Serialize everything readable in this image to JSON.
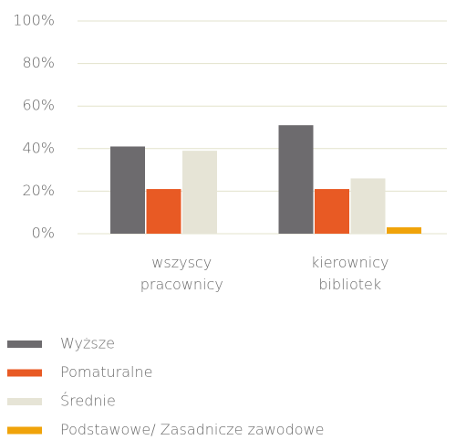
{
  "chart_data": {
    "type": "bar",
    "categories": [
      "wszyscy pracownicy",
      "kierownicy bibliotek"
    ],
    "series": [
      {
        "name": "Wyższe",
        "color": "#6d6b6e",
        "values": [
          41,
          51
        ]
      },
      {
        "name": "Pomaturalne",
        "color": "#e85a24",
        "values": [
          21,
          21
        ]
      },
      {
        "name": "Średnie",
        "color": "#e6e4d6",
        "values": [
          39,
          26
        ]
      },
      {
        "name": "Podstawowe/ Zasadnicze zawodowe",
        "color": "#f0a30a",
        "values": [
          0,
          3
        ]
      }
    ],
    "ylim": [
      0,
      100
    ],
    "yticks": [
      {
        "value": 0,
        "label": "0%"
      },
      {
        "value": 20,
        "label": "20%"
      },
      {
        "value": 40,
        "label": "40%"
      },
      {
        "value": 60,
        "label": "60%"
      },
      {
        "value": 80,
        "label": "80%"
      },
      {
        "value": 100,
        "label": "100%"
      }
    ],
    "grid": true
  }
}
